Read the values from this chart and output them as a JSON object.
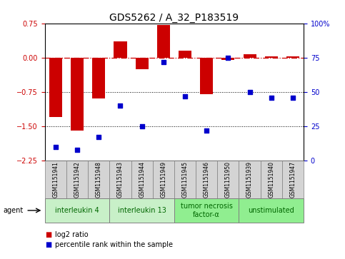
{
  "title": "GDS5262 / A_32_P183519",
  "samples": [
    "GSM1151941",
    "GSM1151942",
    "GSM1151948",
    "GSM1151943",
    "GSM1151944",
    "GSM1151949",
    "GSM1151945",
    "GSM1151946",
    "GSM1151950",
    "GSM1151939",
    "GSM1151940",
    "GSM1151947"
  ],
  "log2_ratio": [
    -1.3,
    -1.6,
    -0.9,
    0.35,
    -0.25,
    0.72,
    0.15,
    -0.8,
    -0.05,
    0.07,
    0.02,
    0.02
  ],
  "percentile": [
    10,
    8,
    17,
    40,
    25,
    72,
    47,
    22,
    75,
    50,
    46,
    46
  ],
  "ylim_left": [
    -2.25,
    0.75
  ],
  "ylim_right": [
    0,
    100
  ],
  "yticks_left": [
    -2.25,
    -1.5,
    -0.75,
    0,
    0.75
  ],
  "yticks_right": [
    0,
    25,
    50,
    75,
    100
  ],
  "ytick_right_labels": [
    "0",
    "25",
    "50",
    "75",
    "100%"
  ],
  "hline_red": 0,
  "hlines_black": [
    -0.75,
    -1.5
  ],
  "agent_groups": [
    {
      "label": "interleukin 4",
      "indices": [
        0,
        1,
        2
      ],
      "color": "#c8f0c8"
    },
    {
      "label": "interleukin 13",
      "indices": [
        3,
        4,
        5
      ],
      "color": "#c8f0c8"
    },
    {
      "label": "tumor necrosis\nfactor-α",
      "indices": [
        6,
        7,
        8
      ],
      "color": "#90ee90"
    },
    {
      "label": "unstimulated",
      "indices": [
        9,
        10,
        11
      ],
      "color": "#90ee90"
    }
  ],
  "bar_color": "#cc0000",
  "dot_color": "#0000cc",
  "sample_box_color": "#d4d4d4",
  "title_fontsize": 10,
  "tick_fontsize": 7,
  "sample_fontsize": 5.5,
  "agent_fontsize": 7,
  "legend_fontsize": 7,
  "bg_color": "#ffffff"
}
